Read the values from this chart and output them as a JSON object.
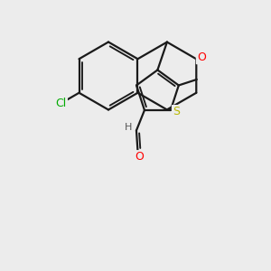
{
  "background_color": "#ececec",
  "bond_color": "#1a1a1a",
  "bond_width": 1.6,
  "atom_colors": {
    "O": "#ff0000",
    "S": "#b8b800",
    "Cl": "#00aa00",
    "H": "#555555"
  },
  "font_size_atoms": 9,
  "font_size_small": 8
}
